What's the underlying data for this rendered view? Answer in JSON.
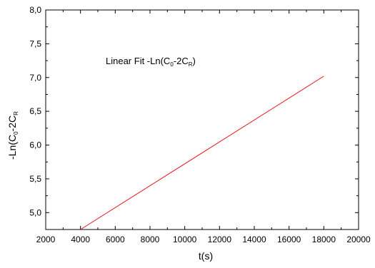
{
  "chart_data": {
    "type": "line",
    "title": "",
    "xlabel": "t(s)",
    "ylabel": {
      "prefix": "-Ln(C",
      "sub1": "0",
      "mid": "-2C",
      "sub2": "R"
    },
    "annotation": {
      "prefix": "Linear Fit -Ln(C",
      "sub1": "0",
      "mid": "-2C",
      "sub2": "R",
      "suffix": ")"
    },
    "xlim": [
      2000,
      20000
    ],
    "ylim": [
      4.75,
      8.0
    ],
    "x_ticks": [
      2000,
      4000,
      6000,
      8000,
      10000,
      12000,
      14000,
      16000,
      18000,
      20000
    ],
    "x_tick_labels": [
      "2000",
      "4000",
      "6000",
      "8000",
      "10000",
      "12000",
      "14000",
      "16000",
      "18000",
      "20000"
    ],
    "y_ticks": [
      5.0,
      5.5,
      6.0,
      6.5,
      7.0,
      7.5,
      8.0
    ],
    "y_tick_labels": [
      "5,0",
      "5,5",
      "6,0",
      "6,5",
      "7,0",
      "7,5",
      "8,0"
    ],
    "grid": false,
    "series": [
      {
        "color": "#e8141c",
        "x": [
          4000,
          18000
        ],
        "y": [
          4.75,
          7.02
        ]
      }
    ]
  }
}
